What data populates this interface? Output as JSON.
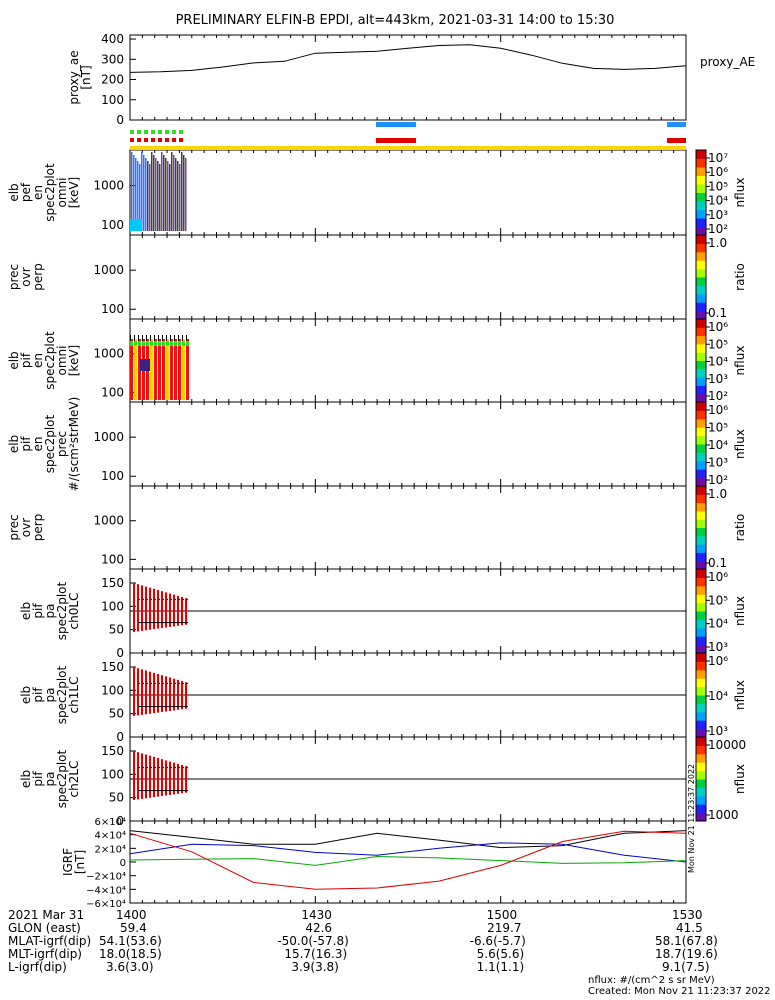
{
  "title": "PRELIMINARY ELFIN-B EPDI, alt=443km, 2021-03-31 14:00 to 15:30",
  "chart_data": [
    {
      "type": "line",
      "panel": "proxy_ae",
      "ylabel": "proxy_ae [nT]",
      "legend": "proxy_AE",
      "yticks": [
        "400",
        "300",
        "200",
        "100",
        "0"
      ],
      "ylim": [
        0,
        420
      ],
      "x_minutes": [
        0,
        5,
        10,
        15,
        20,
        25,
        30,
        35,
        40,
        45,
        50,
        55,
        60,
        65,
        70,
        75,
        80,
        85,
        90
      ],
      "values": [
        235,
        238,
        245,
        262,
        282,
        290,
        330,
        335,
        340,
        355,
        368,
        372,
        355,
        320,
        280,
        255,
        250,
        255,
        268
      ]
    },
    {
      "type": "heatmap",
      "panel": "elb_pef_en_spec2plot_omni",
      "ylabel_lines": [
        "elb",
        "pef",
        "en",
        "spec2plot",
        "omni",
        "[keV]"
      ],
      "yticks": [
        "1000",
        "100"
      ],
      "colorbar": {
        "label": "nflux",
        "ticks": [
          "10^7",
          "10^6",
          "10^5",
          "10^4",
          "10^3",
          "10^2"
        ]
      }
    },
    {
      "type": "heatmap",
      "panel": "prec_ovr_perp_1",
      "ylabel_lines": [
        "prec",
        "ovr",
        "perp"
      ],
      "yticks": [
        "1000",
        "100"
      ],
      "colorbar": {
        "label": "ratio",
        "ticks": [
          "1.0",
          "0.1"
        ]
      }
    },
    {
      "type": "heatmap",
      "panel": "elb_pif_en_spec2plot_omni",
      "ylabel_lines": [
        "elb",
        "pif",
        "en",
        "spec2plot",
        "omni",
        "[keV]"
      ],
      "yticks": [
        "1000",
        "100"
      ],
      "colorbar": {
        "label": "nflux",
        "ticks": [
          "10^6",
          "10^5",
          "10^4",
          "10^3",
          "10^2"
        ]
      }
    },
    {
      "type": "heatmap",
      "panel": "elb_pif_en_spec2plot_prec",
      "ylabel_lines": [
        "elb",
        "pif",
        "en",
        "spec2plot",
        "prec",
        "#/(scm²strMeV)"
      ],
      "yticks": [
        "1000",
        "100"
      ],
      "colorbar": {
        "label": "nflux",
        "ticks": [
          "10^6",
          "10^5",
          "10^4",
          "10^3",
          "10^2"
        ]
      }
    },
    {
      "type": "heatmap",
      "panel": "prec_ovr_perp_2",
      "ylabel_lines": [
        "prec",
        "ovr",
        "perp"
      ],
      "yticks": [
        "1000",
        "100"
      ],
      "colorbar": {
        "label": "ratio",
        "ticks": [
          "1.0",
          "0.1"
        ]
      }
    },
    {
      "type": "heatmap",
      "panel": "ch0LC",
      "ylabel_lines": [
        "elb",
        "pif",
        "pa",
        "spec2plot",
        "ch0LC"
      ],
      "yticks": [
        "150",
        "100",
        "50",
        "0"
      ],
      "colorbar": {
        "label": "nflux",
        "ticks": [
          "10^6",
          "10^5",
          "10^4",
          "10^3"
        ]
      }
    },
    {
      "type": "heatmap",
      "panel": "ch1LC",
      "ylabel_lines": [
        "elb",
        "pif",
        "pa",
        "spec2plot",
        "ch1LC"
      ],
      "yticks": [
        "150",
        "100",
        "50",
        "0"
      ],
      "colorbar": {
        "label": "nflux",
        "ticks": [
          "10^6",
          "10^4",
          "10^3"
        ]
      }
    },
    {
      "type": "heatmap",
      "panel": "ch2LC",
      "ylabel_lines": [
        "elb",
        "pif",
        "pa",
        "spec2plot",
        "ch2LC"
      ],
      "yticks": [
        "150",
        "100",
        "50",
        "0"
      ],
      "colorbar": {
        "label": "nflux",
        "ticks": [
          "10000",
          "1000"
        ]
      }
    },
    {
      "type": "line",
      "panel": "IGRF",
      "ylabel": "IGRF [nT]",
      "yticks": [
        "6×10⁴",
        "4×10⁴",
        "2×10⁴",
        "0",
        "−2×10⁴",
        "−4×10⁴",
        "−6×10⁴"
      ],
      "ylim": [
        -60000,
        60000
      ],
      "x_minutes": [
        0,
        10,
        20,
        30,
        40,
        50,
        60,
        70,
        80,
        90
      ],
      "series": [
        {
          "color": "#000000",
          "values": [
            46000,
            36000,
            26000,
            26000,
            42000,
            32000,
            21000,
            24000,
            42000,
            46000
          ]
        },
        {
          "color": "#0000cc",
          "values": [
            12000,
            26000,
            24000,
            14000,
            10000,
            20000,
            28000,
            26000,
            10000,
            0
          ]
        },
        {
          "color": "#00aa00",
          "values": [
            3000,
            4000,
            5000,
            -5000,
            8000,
            6000,
            2000,
            -2000,
            -1000,
            2000
          ]
        },
        {
          "color": "#dd0000",
          "values": [
            42000,
            15000,
            -30000,
            -40000,
            -38000,
            -28000,
            -5000,
            30000,
            45000,
            42000
          ]
        }
      ]
    }
  ],
  "xaxis": {
    "date_label": "2021 Mar 31",
    "ticks": [
      "1400",
      "1430",
      "1500",
      "1530"
    ],
    "rows": [
      {
        "label": "GLON (east)",
        "values": [
          "59.4",
          "42.6",
          "219.7",
          "41.5"
        ]
      },
      {
        "label": "MLAT-igrf(dip)",
        "values": [
          "54.1(53.6)",
          "-50.0(-57.8)",
          "-6.6(-5.7)",
          "58.1(67.8)"
        ]
      },
      {
        "label": "MLT-igrf(dip)",
        "values": [
          "18.0(18.5)",
          "15.7(16.3)",
          "5.6(5.6)",
          "18.7(19.6)"
        ]
      },
      {
        "label": "L-igrf(dip)",
        "values": [
          "3.6(3.0)",
          "3.9(3.8)",
          "1.1(1.1)",
          "9.1(7.5)"
        ]
      }
    ]
  },
  "footer": {
    "units": "nflux: #/(cm^2 s sr MeV)",
    "created": "Created: Mon Nov 21 11:23:37 2022"
  },
  "side_stamp": "Mon Nov 21 11:23:37 2022"
}
